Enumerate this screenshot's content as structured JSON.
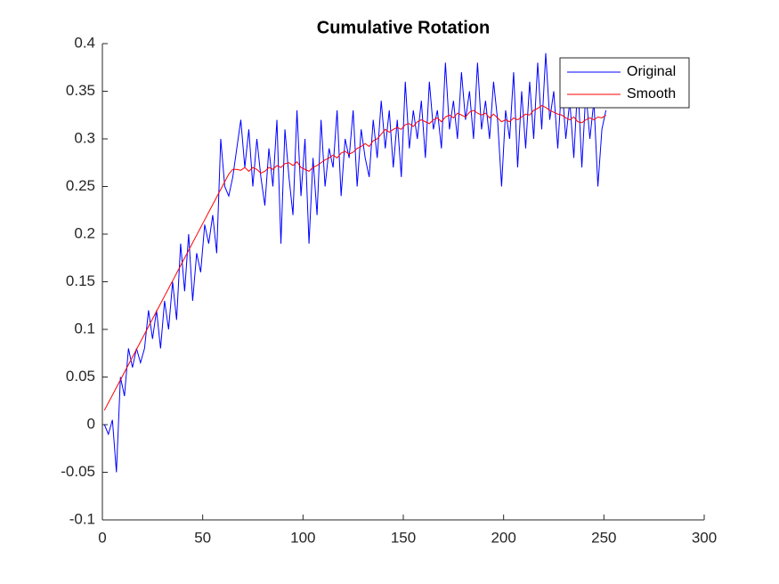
{
  "chart_data": {
    "type": "line",
    "title": "Cumulative Rotation",
    "x": [
      1,
      3,
      5,
      7,
      9,
      11,
      13,
      15,
      17,
      19,
      21,
      23,
      25,
      27,
      29,
      31,
      33,
      35,
      37,
      39,
      41,
      43,
      45,
      47,
      49,
      51,
      53,
      55,
      57,
      59,
      61,
      63,
      65,
      67,
      69,
      71,
      73,
      75,
      77,
      79,
      81,
      83,
      85,
      87,
      89,
      91,
      93,
      95,
      97,
      99,
      101,
      103,
      105,
      107,
      109,
      111,
      113,
      115,
      117,
      119,
      121,
      123,
      125,
      127,
      129,
      131,
      133,
      135,
      137,
      139,
      141,
      143,
      145,
      147,
      149,
      151,
      153,
      155,
      157,
      159,
      161,
      163,
      165,
      167,
      169,
      171,
      173,
      175,
      177,
      179,
      181,
      183,
      185,
      187,
      189,
      191,
      193,
      195,
      197,
      199,
      201,
      203,
      205,
      207,
      209,
      211,
      213,
      215,
      217,
      219,
      221,
      223,
      225,
      227,
      229,
      231,
      233,
      235,
      237,
      239,
      241,
      243,
      245,
      247,
      249,
      251
    ],
    "series": [
      {
        "name": "Original",
        "color": "#0000ff",
        "values": [
          0,
          -0.01,
          0.005,
          -0.05,
          0.05,
          0.03,
          0.08,
          0.06,
          0.08,
          0.065,
          0.08,
          0.12,
          0.09,
          0.12,
          0.08,
          0.13,
          0.1,
          0.15,
          0.11,
          0.19,
          0.14,
          0.2,
          0.13,
          0.18,
          0.16,
          0.21,
          0.19,
          0.22,
          0.18,
          0.3,
          0.25,
          0.24,
          0.26,
          0.29,
          0.32,
          0.27,
          0.31,
          0.25,
          0.3,
          0.26,
          0.23,
          0.29,
          0.25,
          0.32,
          0.19,
          0.31,
          0.26,
          0.22,
          0.33,
          0.24,
          0.3,
          0.19,
          0.28,
          0.22,
          0.32,
          0.25,
          0.29,
          0.27,
          0.33,
          0.24,
          0.3,
          0.28,
          0.33,
          0.25,
          0.31,
          0.28,
          0.26,
          0.32,
          0.28,
          0.34,
          0.29,
          0.33,
          0.27,
          0.32,
          0.26,
          0.36,
          0.29,
          0.33,
          0.3,
          0.34,
          0.28,
          0.36,
          0.31,
          0.33,
          0.29,
          0.38,
          0.31,
          0.34,
          0.3,
          0.37,
          0.32,
          0.35,
          0.3,
          0.38,
          0.31,
          0.34,
          0.3,
          0.36,
          0.32,
          0.25,
          0.33,
          0.3,
          0.37,
          0.27,
          0.35,
          0.29,
          0.36,
          0.3,
          0.38,
          0.31,
          0.39,
          0.32,
          0.35,
          0.29,
          0.36,
          0.3,
          0.34,
          0.28,
          0.36,
          0.27,
          0.35,
          0.3,
          0.34,
          0.25,
          0.31,
          0.33
        ]
      },
      {
        "name": "Smooth",
        "color": "#ff0000",
        "values": [
          0.015,
          0.023,
          0.031,
          0.039,
          0.047,
          0.055,
          0.063,
          0.071,
          0.079,
          0.087,
          0.095,
          0.103,
          0.111,
          0.119,
          0.127,
          0.135,
          0.143,
          0.151,
          0.159,
          0.167,
          0.175,
          0.183,
          0.191,
          0.199,
          0.207,
          0.215,
          0.223,
          0.231,
          0.239,
          0.247,
          0.255,
          0.263,
          0.268,
          0.268,
          0.267,
          0.27,
          0.266,
          0.27,
          0.268,
          0.264,
          0.266,
          0.27,
          0.268,
          0.272,
          0.27,
          0.274,
          0.275,
          0.272,
          0.276,
          0.27,
          0.268,
          0.266,
          0.27,
          0.272,
          0.275,
          0.278,
          0.28,
          0.283,
          0.28,
          0.285,
          0.287,
          0.284,
          0.286,
          0.29,
          0.292,
          0.295,
          0.292,
          0.298,
          0.3,
          0.305,
          0.31,
          0.307,
          0.31,
          0.312,
          0.31,
          0.315,
          0.316,
          0.313,
          0.318,
          0.32,
          0.318,
          0.316,
          0.32,
          0.322,
          0.318,
          0.323,
          0.325,
          0.322,
          0.327,
          0.325,
          0.323,
          0.328,
          0.33,
          0.327,
          0.325,
          0.327,
          0.322,
          0.326,
          0.322,
          0.318,
          0.32,
          0.318,
          0.322,
          0.32,
          0.323,
          0.326,
          0.325,
          0.33,
          0.332,
          0.335,
          0.333,
          0.33,
          0.328,
          0.326,
          0.325,
          0.322,
          0.32,
          0.323,
          0.318,
          0.317,
          0.32,
          0.322,
          0.32,
          0.323,
          0.322,
          0.325
        ]
      }
    ],
    "xlim": [
      0,
      300
    ],
    "xticks": [
      0,
      50,
      100,
      150,
      200,
      250,
      300
    ],
    "ylim": [
      -0.1,
      0.4
    ],
    "yticks": [
      -0.1,
      -0.05,
      0,
      0.05,
      0.1,
      0.15,
      0.2,
      0.25,
      0.3,
      0.35,
      0.4
    ],
    "legend": "top-right"
  }
}
